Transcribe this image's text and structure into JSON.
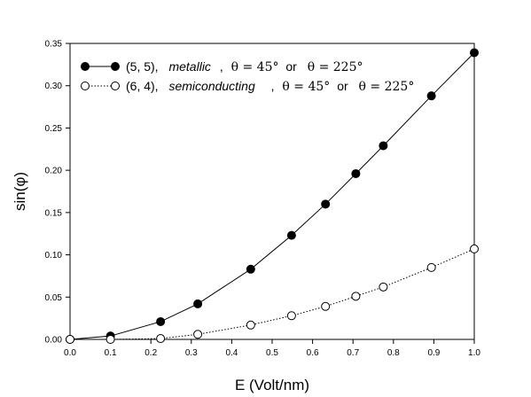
{
  "chart_data": {
    "type": "line",
    "xlabel": "E (Volt/nm)",
    "ylabel": "sin(φ)",
    "xlim": [
      0.0,
      1.0
    ],
    "ylim": [
      0.0,
      0.35
    ],
    "x_ticks": [
      "0.0",
      "0.1",
      "0.2",
      "0.3",
      "0.4",
      "0.5",
      "0.6",
      "0.7",
      "0.8",
      "0.9",
      "1.0"
    ],
    "y_ticks": [
      "0.00",
      "0.05",
      "0.10",
      "0.15",
      "0.20",
      "0.25",
      "0.30",
      "0.35"
    ],
    "grid": false,
    "legend_position": "top-left",
    "series": [
      {
        "legend": {
          "tube": "(5, 5),",
          "type": "metallic",
          "sep": ",",
          "theta1": "θ = 45°",
          "or": "or",
          "theta2": "θ = 225°"
        },
        "marker": "filled-circle",
        "line_style": "solid",
        "color": "#000000",
        "x": [
          0.0,
          0.1,
          0.224,
          0.316,
          0.447,
          0.548,
          0.632,
          0.707,
          0.775,
          0.894,
          1.0
        ],
        "y": [
          0.0,
          0.004,
          0.021,
          0.042,
          0.083,
          0.123,
          0.16,
          0.196,
          0.229,
          0.288,
          0.339
        ]
      },
      {
        "legend": {
          "tube": "(6, 4),",
          "type": "semiconducting",
          "sep": ",",
          "theta1": "θ = 45°",
          "or": "or",
          "theta2": "θ = 225°"
        },
        "marker": "open-circle",
        "line_style": "dotted",
        "color": "#000000",
        "x": [
          0.0,
          0.1,
          0.224,
          0.316,
          0.447,
          0.548,
          0.632,
          0.707,
          0.775,
          0.894,
          1.0
        ],
        "y": [
          0.0,
          0.0,
          0.001,
          0.006,
          0.017,
          0.028,
          0.039,
          0.051,
          0.062,
          0.085,
          0.107
        ]
      }
    ]
  }
}
